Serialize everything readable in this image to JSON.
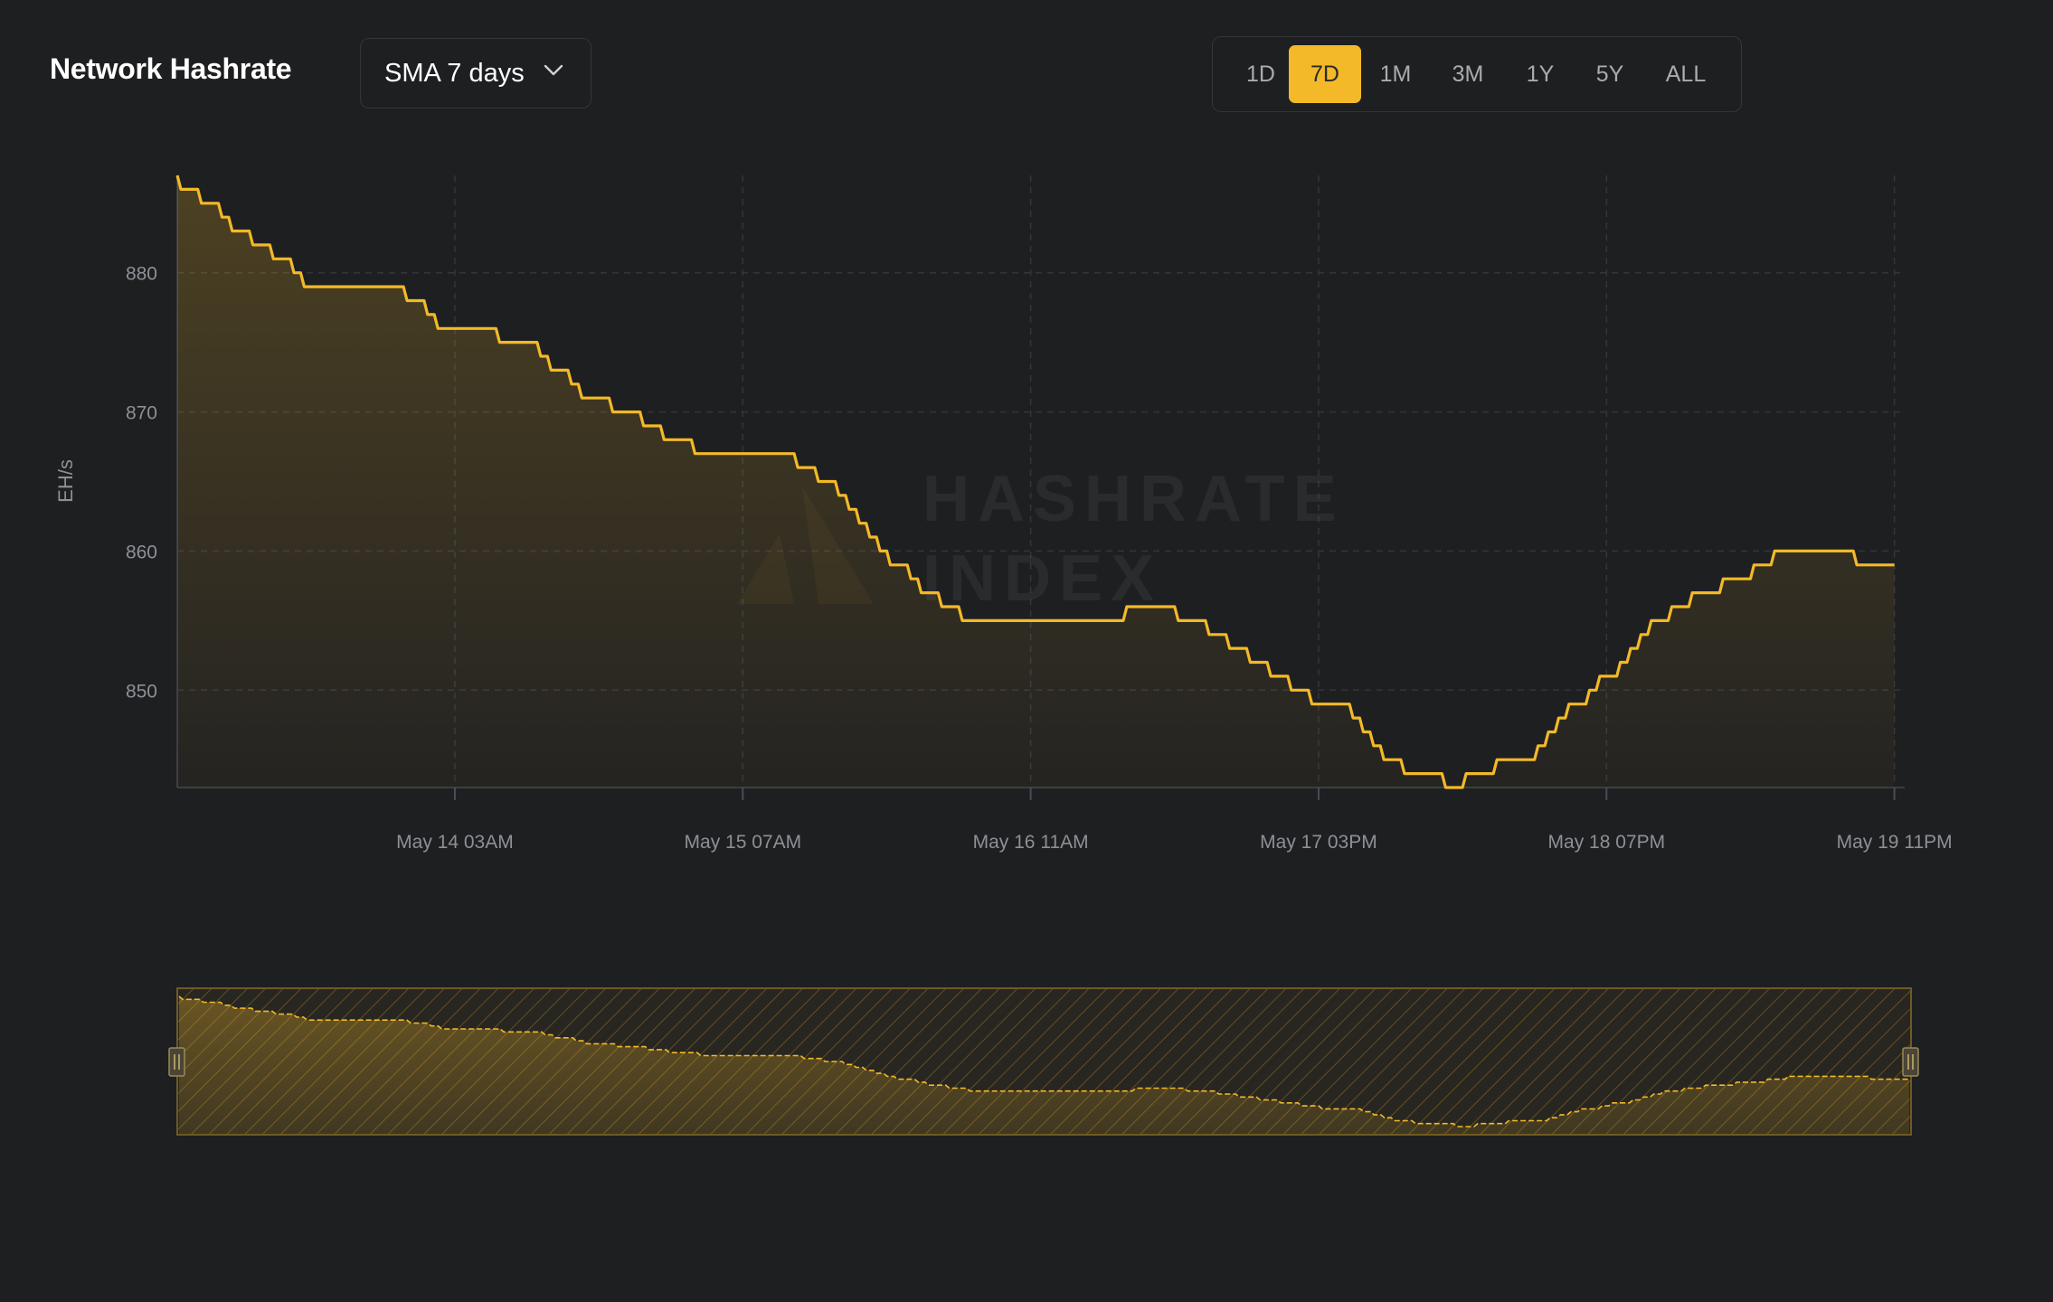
{
  "header": {
    "title": "Network Hashrate",
    "sma_label": "SMA 7 days",
    "ranges": [
      "1D",
      "7D",
      "1M",
      "3M",
      "1Y",
      "5Y",
      "ALL"
    ],
    "active_range": "7D"
  },
  "watermark": {
    "line1": "HASHRATE",
    "line2": "INDEX"
  },
  "colors": {
    "background": "#1e1f21",
    "accent": "#f3b928",
    "grid": "#33353a",
    "text_muted": "#8d9096"
  },
  "chart_data": {
    "type": "area",
    "ylabel": "EH/s",
    "xlabel": "",
    "title": "",
    "ylim": [
      843,
      887
    ],
    "yticks": [
      850,
      860,
      870,
      880
    ],
    "xlim": [
      "May 13 00:00",
      "May 20 00:00"
    ],
    "xticks": [
      {
        "label": "May 14 03AM",
        "hour": 27
      },
      {
        "label": "May 15 07AM",
        "hour": 55
      },
      {
        "label": "May 16 11AM",
        "hour": 83
      },
      {
        "label": "May 17 03PM",
        "hour": 111
      },
      {
        "label": "May 18 07PM",
        "hour": 139
      },
      {
        "label": "May 19 11PM",
        "hour": 167
      }
    ],
    "grid": true,
    "x": [
      0,
      1,
      2,
      3,
      4,
      5,
      6,
      7,
      8,
      9,
      10,
      11,
      12,
      13,
      14,
      15,
      16,
      17,
      18,
      19,
      20,
      21,
      22,
      23,
      24,
      25,
      26,
      27,
      28,
      29,
      30,
      31,
      32,
      33,
      34,
      35,
      36,
      37,
      38,
      39,
      40,
      41,
      42,
      43,
      44,
      45,
      46,
      47,
      48,
      49,
      50,
      51,
      52,
      53,
      54,
      55,
      56,
      57,
      58,
      59,
      60,
      61,
      62,
      63,
      64,
      65,
      66,
      67,
      68,
      69,
      70,
      71,
      72,
      73,
      74,
      75,
      76,
      77,
      78,
      79,
      80,
      81,
      82,
      83,
      84,
      85,
      86,
      87,
      88,
      89,
      90,
      91,
      92,
      93,
      94,
      95,
      96,
      97,
      98,
      99,
      100,
      101,
      102,
      103,
      104,
      105,
      106,
      107,
      108,
      109,
      110,
      111,
      112,
      113,
      114,
      115,
      116,
      117,
      118,
      119,
      120,
      121,
      122,
      123,
      124,
      125,
      126,
      127,
      128,
      129,
      130,
      131,
      132,
      133,
      134,
      135,
      136,
      137,
      138,
      139,
      140,
      141,
      142,
      143,
      144,
      145,
      146,
      147,
      148,
      149,
      150,
      151,
      152,
      153,
      154,
      155,
      156,
      157,
      158,
      159,
      160,
      161,
      162,
      163,
      164,
      165,
      166,
      167
    ],
    "series": [
      {
        "name": "",
        "values": [
          887,
          886,
          886,
          885,
          885,
          884,
          883,
          883,
          882,
          882,
          881,
          881,
          880,
          879,
          879,
          879,
          879,
          879,
          879,
          879,
          879,
          879,
          879,
          878,
          878,
          877,
          876,
          876,
          876,
          876,
          876,
          876,
          875,
          875,
          875,
          875,
          874,
          873,
          873,
          872,
          871,
          871,
          871,
          870,
          870,
          870,
          869,
          869,
          868,
          868,
          868,
          867,
          867,
          867,
          867,
          867,
          867,
          867,
          867,
          867,
          867,
          866,
          866,
          865,
          865,
          864,
          863,
          862,
          861,
          860,
          859,
          859,
          858,
          857,
          857,
          856,
          856,
          855,
          855,
          855,
          855,
          855,
          855,
          855,
          855,
          855,
          855,
          855,
          855,
          855,
          855,
          855,
          855,
          856,
          856,
          856,
          856,
          856,
          855,
          855,
          855,
          854,
          854,
          853,
          853,
          852,
          852,
          851,
          851,
          850,
          850,
          849,
          849,
          849,
          849,
          848,
          847,
          846,
          845,
          845,
          844,
          844,
          844,
          844,
          843,
          843,
          844,
          844,
          844,
          845,
          845,
          845,
          845,
          846,
          847,
          848,
          849,
          849,
          850,
          851,
          851,
          852,
          853,
          854,
          855,
          855,
          856,
          856,
          857,
          857,
          857,
          858,
          858,
          858,
          859,
          859,
          860,
          860,
          860,
          860,
          860,
          860,
          860,
          860,
          859,
          859,
          859,
          859
        ]
      }
    ]
  }
}
